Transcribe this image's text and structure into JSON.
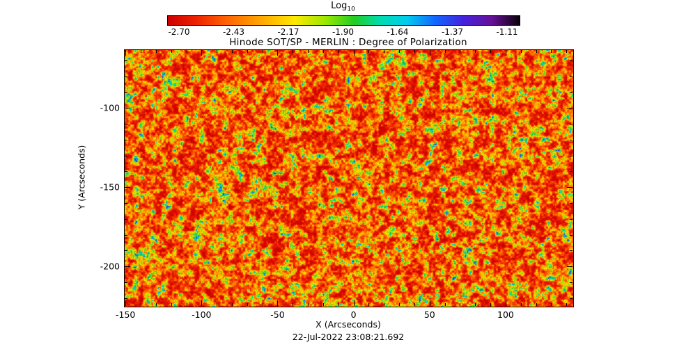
{
  "figure": {
    "title": "Hinode SOT/SP - MERLIN : Degree of Polarization",
    "xlabel": "X (Arcseconds)",
    "ylabel": "Y (Arcseconds)",
    "timestamp": "22-Jul-2022 23:08:21.692"
  },
  "colorbar": {
    "label_main": "Log",
    "label_sub": "10",
    "tick_labels": [
      "-2.70",
      "-2.43",
      "-2.17",
      "-1.90",
      "-1.64",
      "-1.37",
      "-1.11"
    ]
  },
  "chart_data": {
    "type": "heatmap",
    "title": "Hinode SOT/SP - MERLIN : Degree of Polarization",
    "xlabel": "X (Arcseconds)",
    "ylabel": "Y (Arcseconds)",
    "timestamp": "22-Jul-2022 23:08:21.692",
    "x_range": [
      -151,
      144
    ],
    "y_range": [
      -225,
      -63
    ],
    "x_ticks": [
      -150,
      -100,
      -50,
      0,
      50,
      100
    ],
    "x_tick_labels": [
      "-150",
      "-100",
      "-50",
      "0",
      "50",
      "100"
    ],
    "y_ticks": [
      -100,
      -150,
      -200
    ],
    "y_tick_labels": [
      "-100",
      "-150",
      "-200"
    ],
    "minor_tick_step": 10,
    "colorbar": {
      "label": "Log10",
      "value_range": [
        -2.7,
        -1.11
      ],
      "ticks": [
        -2.7,
        -2.43,
        -2.17,
        -1.9,
        -1.64,
        -1.37,
        -1.11
      ]
    },
    "value_description": "Dense log10 degree-of-polarization map: background mostly near -2.5 (red/orange), granular speckle network near -2.2 to -1.9 (yellow/green), sparse patches above -1.7 (cyan/blue) and rare dark purple/black spots near -1.1.",
    "colormap_stops": [
      {
        "t": 0.0,
        "color": "#cc0000"
      },
      {
        "t": 0.08,
        "color": "#ee2200"
      },
      {
        "t": 0.17,
        "color": "#ff6600"
      },
      {
        "t": 0.27,
        "color": "#ffaa00"
      },
      {
        "t": 0.36,
        "color": "#ffe800"
      },
      {
        "t": 0.45,
        "color": "#99e800"
      },
      {
        "t": 0.53,
        "color": "#22cc22"
      },
      {
        "t": 0.6,
        "color": "#00ddaa"
      },
      {
        "t": 0.68,
        "color": "#00ccee"
      },
      {
        "t": 0.76,
        "color": "#1166ff"
      },
      {
        "t": 0.84,
        "color": "#4422dd"
      },
      {
        "t": 0.92,
        "color": "#661199"
      },
      {
        "t": 1.0,
        "color": "#0a0208"
      }
    ],
    "texture_synthesis": {
      "seed": 1337,
      "octaves": [
        {
          "cell": 8,
          "weight": 0.45
        },
        {
          "cell": 3,
          "weight": 0.4
        },
        {
          "cell": 1,
          "weight": 0.15
        }
      ],
      "shape": {
        "lo": 0.08,
        "span": 0.8,
        "gamma": 2.5,
        "scale": 0.85
      }
    }
  }
}
